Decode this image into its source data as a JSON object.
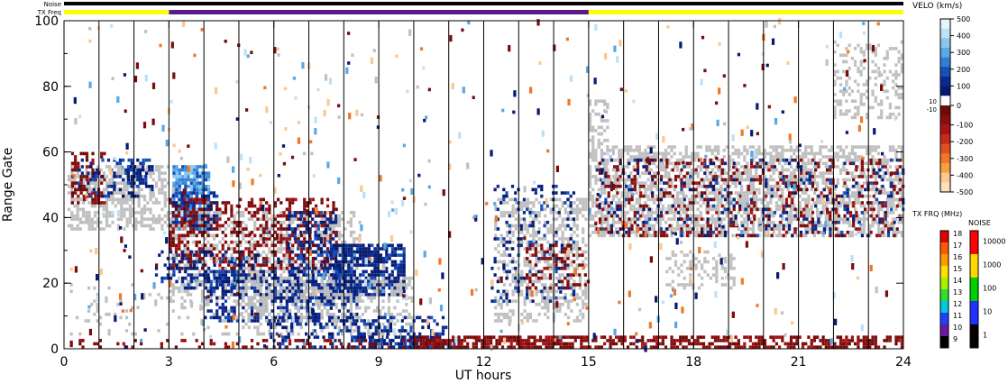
{
  "chart_data": {
    "type": "heatmap",
    "xlabel": "UT hours",
    "ylabel": "Range Gate",
    "xlim": [
      0,
      24
    ],
    "ylim": [
      0,
      100
    ],
    "x_ticks": [
      "0",
      "3",
      "6",
      "9",
      "12",
      "15",
      "18",
      "21",
      "24"
    ],
    "x_tick_values": [
      0,
      3,
      6,
      9,
      12,
      15,
      18,
      21,
      24
    ],
    "y_ticks": [
      "0",
      "20",
      "40",
      "60",
      "80",
      "100"
    ],
    "y_tick_values": [
      0,
      20,
      40,
      60,
      80,
      100
    ],
    "scan_boundaries_ut": [
      1,
      2,
      3,
      4,
      5,
      6,
      7,
      8,
      9,
      10,
      11,
      12,
      13,
      14,
      15,
      16,
      17,
      18,
      19,
      20,
      21,
      22,
      23
    ],
    "status_bars": {
      "noise_label": "Noise",
      "txfreq_label": "TX Freq",
      "noise_color": "#000000",
      "txfreq_segments": [
        {
          "start": 0,
          "end": 3,
          "color": "#ffff00"
        },
        {
          "start": 3,
          "end": 15,
          "color": "#5a1a8a"
        },
        {
          "start": 15,
          "end": 24,
          "color": "#ffff00"
        }
      ]
    },
    "velocity_colorbar": {
      "title": "VELO (km/s)",
      "labels": [
        "500",
        "400",
        "300",
        "200",
        "100",
        "0",
        "-100",
        "-200",
        "-300",
        "-400",
        "-500"
      ],
      "values": [
        500,
        400,
        300,
        200,
        100,
        0,
        -100,
        -200,
        -300,
        -400,
        -500
      ],
      "inner_labels": [
        "10",
        "-10"
      ],
      "colors": [
        "#e8f4fc",
        "#bfe0f5",
        "#8cc6ee",
        "#5aa8e4",
        "#2f80d4",
        "#1550b8",
        "#0a2a90",
        "#081a70",
        "#ffffff",
        "#6e0a0a",
        "#8a0e0e",
        "#a81414",
        "#c82a1a",
        "#e0501e",
        "#f07828",
        "#f8a040",
        "#fcc890",
        "#fde0c0"
      ]
    },
    "txfreq_colorbar": {
      "title": "TX FRQ (MHz)",
      "labels": [
        "18",
        "17",
        "16",
        "15",
        "14",
        "13",
        "12",
        "11",
        "10",
        "9"
      ],
      "colors": [
        "#e00000",
        "#ff5a00",
        "#ff9a00",
        "#ffe000",
        "#a8f000",
        "#30e030",
        "#00c8e0",
        "#2040ff",
        "#6a1aa0",
        "#000000"
      ]
    },
    "noise_colorbar": {
      "title": "NOISE",
      "labels": [
        "10000",
        "1000",
        "100",
        "10",
        "1"
      ],
      "colors": [
        "#ff0000",
        "#ffd800",
        "#00d000",
        "#2030ff",
        "#000000"
      ]
    },
    "colors": {
      "ground_scatter": "#c0c0c0",
      "positive_dark": "#081a70",
      "negative_dark": "#7a0c0c",
      "light_blue": "#4090e0"
    },
    "regions": [
      {
        "kind": "gs",
        "ut": [
          0.1,
          3.0
        ],
        "gate": [
          36,
          56
        ],
        "density": 0.55
      },
      {
        "kind": "neg",
        "ut": [
          0.2,
          1.2
        ],
        "gate": [
          44,
          60
        ],
        "density": 0.35
      },
      {
        "kind": "pos",
        "ut": [
          0.4,
          2.6
        ],
        "gate": [
          46,
          58
        ],
        "density": 0.25
      },
      {
        "kind": "pos",
        "ut": [
          1.8,
          2.4
        ],
        "gate": [
          50,
          56
        ],
        "density": 0.7
      },
      {
        "kind": "lightblue",
        "ut": [
          3.1,
          4.2
        ],
        "gate": [
          36,
          56
        ],
        "density": 0.85
      },
      {
        "kind": "pos",
        "ut": [
          3.0,
          4.4
        ],
        "gate": [
          36,
          48
        ],
        "density": 0.55
      },
      {
        "kind": "gs",
        "ut": [
          3.0,
          8.5
        ],
        "gate": [
          14,
          42
        ],
        "density": 0.4
      },
      {
        "kind": "neg",
        "ut": [
          3.0,
          7.8
        ],
        "gate": [
          24,
          46
        ],
        "density": 0.35
      },
      {
        "kind": "pos",
        "ut": [
          2.6,
          5.8
        ],
        "gate": [
          18,
          30
        ],
        "density": 0.25
      },
      {
        "kind": "pos",
        "ut": [
          4.0,
          8.4
        ],
        "gate": [
          8,
          24
        ],
        "density": 0.45
      },
      {
        "kind": "pos",
        "ut": [
          6.4,
          7.8
        ],
        "gate": [
          14,
          42
        ],
        "density": 0.45
      },
      {
        "kind": "pos",
        "ut": [
          7.6,
          9.8
        ],
        "gate": [
          16,
          32
        ],
        "density": 0.75
      },
      {
        "kind": "gs",
        "ut": [
          5.0,
          10.0
        ],
        "gate": [
          4,
          22
        ],
        "density": 0.35
      },
      {
        "kind": "pos",
        "ut": [
          5.8,
          11.0
        ],
        "gate": [
          0,
          10
        ],
        "density": 0.3
      },
      {
        "kind": "pos",
        "ut": [
          8.2,
          11.2
        ],
        "gate": [
          0,
          4
        ],
        "density": 0.55
      },
      {
        "kind": "neg",
        "ut": [
          10.0,
          15.0
        ],
        "gate": [
          0,
          4
        ],
        "density": 0.75
      },
      {
        "kind": "neg",
        "ut": [
          15.0,
          24.0
        ],
        "gate": [
          0,
          4
        ],
        "density": 0.55
      },
      {
        "kind": "neg",
        "ut": [
          0.0,
          10.0
        ],
        "gate": [
          0,
          3
        ],
        "density": 0.2
      },
      {
        "kind": "gs",
        "ut": [
          12.3,
          15.0
        ],
        "gate": [
          8,
          46
        ],
        "density": 0.45
      },
      {
        "kind": "pos",
        "ut": [
          12.2,
          14.6
        ],
        "gate": [
          14,
          50
        ],
        "density": 0.15
      },
      {
        "kind": "neg",
        "ut": [
          13.2,
          15.0
        ],
        "gate": [
          18,
          32
        ],
        "density": 0.3
      },
      {
        "kind": "gs",
        "ut": [
          15.0,
          24.0
        ],
        "gate": [
          34,
          62
        ],
        "density": 0.55
      },
      {
        "kind": "neg",
        "ut": [
          15.2,
          24.0
        ],
        "gate": [
          34,
          58
        ],
        "density": 0.18
      },
      {
        "kind": "pos",
        "ut": [
          15.2,
          24.0
        ],
        "gate": [
          34,
          58
        ],
        "density": 0.1
      },
      {
        "kind": "gs",
        "ut": [
          15.0,
          15.6
        ],
        "gate": [
          60,
          76
        ],
        "density": 0.45
      },
      {
        "kind": "gs",
        "ut": [
          17.2,
          19.2
        ],
        "gate": [
          18,
          30
        ],
        "density": 0.3
      },
      {
        "kind": "gs",
        "ut": [
          22.0,
          24.0
        ],
        "gate": [
          70,
          94
        ],
        "density": 0.3
      },
      {
        "kind": "gs",
        "ut": [
          0.0,
          6.0
        ],
        "gate": [
          4,
          20
        ],
        "density": 0.1
      }
    ]
  }
}
